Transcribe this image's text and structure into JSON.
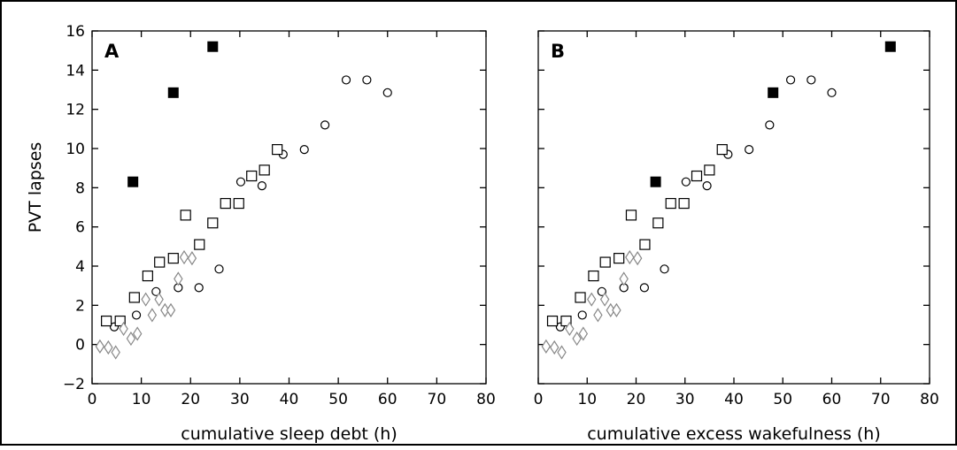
{
  "ylabel": "PVT lapses",
  "chart_data": [
    {
      "type": "scatter",
      "panel_label": "A",
      "xlabel": "cumulative sleep debt (h)",
      "xlim": [
        0,
        80
      ],
      "ylim": [
        -2,
        16
      ],
      "xticks": [
        0,
        10,
        20,
        30,
        40,
        50,
        60,
        70,
        80
      ],
      "yticks": [
        -2,
        0,
        2,
        4,
        6,
        8,
        10,
        12,
        14,
        16
      ],
      "grid": false,
      "series": [
        {
          "marker": "open-circle",
          "color": "#000000",
          "points": [
            [
              4.5,
              0.9
            ],
            [
              9,
              1.5
            ],
            [
              13,
              2.7
            ],
            [
              17.5,
              2.9
            ],
            [
              21.7,
              2.9
            ],
            [
              25.8,
              3.85
            ],
            [
              30.2,
              8.3
            ],
            [
              34.5,
              8.1
            ],
            [
              38.8,
              9.7
            ],
            [
              43.1,
              9.95
            ],
            [
              47.3,
              11.2
            ],
            [
              51.6,
              13.5
            ],
            [
              55.8,
              13.5
            ],
            [
              60,
              12.85
            ]
          ]
        },
        {
          "marker": "open-square",
          "color": "#000000",
          "points": [
            [
              2.9,
              1.2
            ],
            [
              5.7,
              1.2
            ],
            [
              8.6,
              2.4
            ],
            [
              11.3,
              3.5
            ],
            [
              13.7,
              4.2
            ],
            [
              16.5,
              4.4
            ],
            [
              19,
              6.6
            ],
            [
              21.8,
              5.1
            ],
            [
              24.5,
              6.2
            ],
            [
              27.1,
              7.2
            ],
            [
              29.8,
              7.2
            ],
            [
              32.4,
              8.6
            ],
            [
              35,
              8.9
            ],
            [
              37.6,
              9.95
            ]
          ]
        },
        {
          "marker": "open-diamond",
          "color": "#888888",
          "points": [
            [
              1.6,
              -0.1
            ],
            [
              3.3,
              -0.15
            ],
            [
              4.8,
              -0.4
            ],
            [
              6.4,
              0.8
            ],
            [
              7.9,
              0.3
            ],
            [
              9.2,
              0.55
            ],
            [
              10.9,
              2.3
            ],
            [
              12.2,
              1.5
            ],
            [
              13.6,
              2.3
            ],
            [
              14.8,
              1.75
            ],
            [
              16,
              1.75
            ],
            [
              17.5,
              3.35
            ],
            [
              18.7,
              4.45
            ],
            [
              20.3,
              4.4
            ]
          ]
        },
        {
          "marker": "filled-square",
          "color": "#000000",
          "points": [
            [
              8.3,
              8.3
            ],
            [
              16.5,
              12.85
            ],
            [
              24.5,
              15.2
            ]
          ]
        }
      ]
    },
    {
      "type": "scatter",
      "panel_label": "B",
      "xlabel": "cumulative excess wakefulness (h)",
      "xlim": [
        0,
        80
      ],
      "ylim": [
        -2,
        16
      ],
      "xticks": [
        0,
        10,
        20,
        30,
        40,
        50,
        60,
        70,
        80
      ],
      "yticks": [
        -2,
        0,
        2,
        4,
        6,
        8,
        10,
        12,
        14,
        16
      ],
      "grid": false,
      "series": [
        {
          "marker": "open-circle",
          "color": "#000000",
          "points": [
            [
              4.5,
              0.9
            ],
            [
              9,
              1.5
            ],
            [
              13,
              2.7
            ],
            [
              17.5,
              2.9
            ],
            [
              21.7,
              2.9
            ],
            [
              25.8,
              3.85
            ],
            [
              30.2,
              8.3
            ],
            [
              34.5,
              8.1
            ],
            [
              38.8,
              9.7
            ],
            [
              43.1,
              9.95
            ],
            [
              47.3,
              11.2
            ],
            [
              51.6,
              13.5
            ],
            [
              55.8,
              13.5
            ],
            [
              60,
              12.85
            ]
          ]
        },
        {
          "marker": "open-square",
          "color": "#000000",
          "points": [
            [
              2.9,
              1.2
            ],
            [
              5.7,
              1.2
            ],
            [
              8.6,
              2.4
            ],
            [
              11.3,
              3.5
            ],
            [
              13.7,
              4.2
            ],
            [
              16.5,
              4.4
            ],
            [
              19,
              6.6
            ],
            [
              21.8,
              5.1
            ],
            [
              24.5,
              6.2
            ],
            [
              27.1,
              7.2
            ],
            [
              29.8,
              7.2
            ],
            [
              32.4,
              8.6
            ],
            [
              35,
              8.9
            ],
            [
              37.6,
              9.95
            ]
          ]
        },
        {
          "marker": "open-diamond",
          "color": "#888888",
          "points": [
            [
              1.6,
              -0.1
            ],
            [
              3.3,
              -0.15
            ],
            [
              4.8,
              -0.4
            ],
            [
              6.4,
              0.8
            ],
            [
              7.9,
              0.3
            ],
            [
              9.2,
              0.55
            ],
            [
              10.9,
              2.3
            ],
            [
              12.2,
              1.5
            ],
            [
              13.6,
              2.3
            ],
            [
              14.8,
              1.75
            ],
            [
              16,
              1.75
            ],
            [
              17.5,
              3.35
            ],
            [
              18.7,
              4.45
            ],
            [
              20.3,
              4.4
            ]
          ]
        },
        {
          "marker": "filled-square",
          "color": "#000000",
          "points": [
            [
              24,
              8.3
            ],
            [
              48,
              12.85
            ],
            [
              72,
              15.2
            ]
          ]
        }
      ]
    }
  ]
}
